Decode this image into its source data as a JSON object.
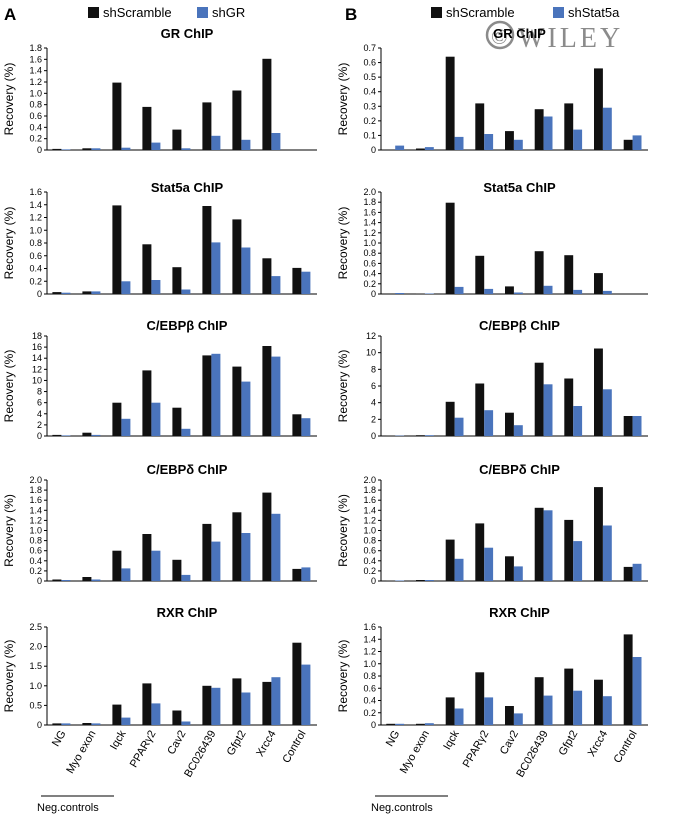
{
  "colors": {
    "scramble": "#111111",
    "knockdown": "#4a74bc",
    "axis": "#000000",
    "watermark": "#777777"
  },
  "watermark": {
    "symbol": "©",
    "text": "WILEY"
  },
  "panels": [
    {
      "letter": "A",
      "legend": [
        "shScramble",
        "shGR"
      ]
    },
    {
      "letter": "B",
      "legend": [
        "shScramble",
        "shStat5a"
      ]
    }
  ],
  "categories": [
    "NG",
    "Myo exon",
    "Iqck",
    "PPARγ2",
    "Cav2",
    "BC026439",
    "Gfpt2",
    "Xrcc4",
    "Control"
  ],
  "neg_controls_label": "Neg.controls",
  "chart_data": [
    {
      "type": "bar",
      "panel": "A",
      "title": "GR ChIP",
      "ylabel": "Recovery (%)",
      "ylim": [
        0,
        1.8
      ],
      "yticks": [
        "0",
        "0.2",
        "0.4",
        "0.6",
        "0.8",
        "1.0",
        "1.2",
        "1.4",
        "1.6",
        "1.8"
      ],
      "series": [
        {
          "name": "shScramble",
          "values": [
            0.02,
            0.03,
            1.19,
            0.76,
            0.36,
            0.84,
            1.05,
            1.61,
            0.0
          ]
        },
        {
          "name": "shGR",
          "values": [
            0.01,
            0.03,
            0.04,
            0.13,
            0.03,
            0.25,
            0.18,
            0.3,
            0.0
          ]
        }
      ]
    },
    {
      "type": "bar",
      "panel": "B",
      "title": "GR ChIP",
      "ylabel": "Recovery (%)",
      "ylim": [
        0,
        0.7
      ],
      "yticks": [
        "0",
        "0.1",
        "0.2",
        "0.3",
        "0.4",
        "0.5",
        "0.6",
        "0.7"
      ],
      "series": [
        {
          "name": "shScramble",
          "values": [
            0.0,
            0.01,
            0.64,
            0.32,
            0.13,
            0.28,
            0.32,
            0.56,
            0.07
          ]
        },
        {
          "name": "shStat5a",
          "values": [
            0.03,
            0.02,
            0.09,
            0.11,
            0.07,
            0.23,
            0.14,
            0.29,
            0.1
          ]
        }
      ]
    },
    {
      "type": "bar",
      "panel": "A",
      "title": "Stat5a ChIP",
      "ylabel": "Recovery (%)",
      "ylim": [
        0,
        1.6
      ],
      "yticks": [
        "0",
        "0.2",
        "0.4",
        "0.6",
        "0.8",
        "1.0",
        "1.2",
        "1.4",
        "1.6"
      ],
      "series": [
        {
          "name": "shScramble",
          "values": [
            0.03,
            0.04,
            1.39,
            0.78,
            0.42,
            1.38,
            1.17,
            0.56,
            0.41
          ]
        },
        {
          "name": "shGR",
          "values": [
            0.02,
            0.04,
            0.2,
            0.22,
            0.07,
            0.81,
            0.73,
            0.28,
            0.35
          ]
        }
      ]
    },
    {
      "type": "bar",
      "panel": "B",
      "title": "Stat5a ChIP",
      "ylabel": "Recovery (%)",
      "ylim": [
        0,
        2.0
      ],
      "yticks": [
        "0",
        "0.2",
        "0.4",
        "0.6",
        "0.8",
        "1.0",
        "1.2",
        "1.4",
        "1.6",
        "1.8",
        "2.0"
      ],
      "series": [
        {
          "name": "shScramble",
          "values": [
            0.0,
            0.01,
            1.79,
            0.75,
            0.15,
            0.84,
            0.76,
            0.41,
            0.0
          ]
        },
        {
          "name": "shStat5a",
          "values": [
            0.02,
            0.01,
            0.14,
            0.1,
            0.03,
            0.16,
            0.08,
            0.06,
            0.0
          ]
        }
      ]
    },
    {
      "type": "bar",
      "panel": "A",
      "title": "C/EBPβ ChIP",
      "ylabel": "Recovery (%)",
      "ylim": [
        0,
        18
      ],
      "yticks": [
        "0",
        "2",
        "4",
        "6",
        "8",
        "10",
        "12",
        "14",
        "16",
        "18"
      ],
      "series": [
        {
          "name": "shScramble",
          "values": [
            0.2,
            0.6,
            6.0,
            11.8,
            5.1,
            14.5,
            12.5,
            16.2,
            3.9
          ]
        },
        {
          "name": "shGR",
          "values": [
            0.1,
            0.2,
            3.1,
            6.0,
            1.3,
            14.8,
            9.8,
            14.3,
            3.2
          ]
        }
      ]
    },
    {
      "type": "bar",
      "panel": "B",
      "title": "C/EBPβ ChIP",
      "ylabel": "Recovery (%)",
      "ylim": [
        0,
        12
      ],
      "yticks": [
        "0",
        "2",
        "4",
        "6",
        "8",
        "10",
        "12"
      ],
      "series": [
        {
          "name": "shScramble",
          "values": [
            0.05,
            0.1,
            4.1,
            6.3,
            2.8,
            8.8,
            6.9,
            10.5,
            2.4
          ]
        },
        {
          "name": "shStat5a",
          "values": [
            0.05,
            0.1,
            2.2,
            3.1,
            1.3,
            6.2,
            3.6,
            5.6,
            2.4
          ]
        }
      ]
    },
    {
      "type": "bar",
      "panel": "A",
      "title": "C/EBPδ ChIP",
      "ylabel": "Recovery (%)",
      "ylim": [
        0,
        2.0
      ],
      "yticks": [
        "0",
        "0.2",
        "0.4",
        "0.6",
        "0.8",
        "1.0",
        "1.2",
        "1.4",
        "1.6",
        "1.8",
        "2.0"
      ],
      "series": [
        {
          "name": "shScramble",
          "values": [
            0.03,
            0.08,
            0.6,
            0.93,
            0.42,
            1.13,
            1.36,
            1.75,
            0.24
          ]
        },
        {
          "name": "shGR",
          "values": [
            0.02,
            0.03,
            0.25,
            0.6,
            0.12,
            0.78,
            0.95,
            1.33,
            0.27
          ]
        }
      ]
    },
    {
      "type": "bar",
      "panel": "B",
      "title": "C/EBPδ ChIP",
      "ylabel": "Recovery (%)",
      "ylim": [
        0,
        2.0
      ],
      "yticks": [
        "0",
        "0.2",
        "0.4",
        "0.6",
        "0.8",
        "1.0",
        "1.2",
        "1.4",
        "1.6",
        "1.8",
        "2.0"
      ],
      "series": [
        {
          "name": "shScramble",
          "values": [
            0.01,
            0.02,
            0.82,
            1.14,
            0.49,
            1.45,
            1.21,
            1.86,
            0.28
          ]
        },
        {
          "name": "shStat5a",
          "values": [
            0.01,
            0.02,
            0.44,
            0.66,
            0.29,
            1.4,
            0.79,
            1.1,
            0.34
          ]
        }
      ]
    },
    {
      "type": "bar",
      "panel": "A",
      "title": "RXR ChIP",
      "ylabel": "Recovery (%)",
      "ylim": [
        0,
        2.5
      ],
      "yticks": [
        "0",
        "0.5",
        "1.0",
        "1.5",
        "2.0",
        "2.5"
      ],
      "series": [
        {
          "name": "shScramble",
          "values": [
            0.04,
            0.05,
            0.52,
            1.06,
            0.37,
            1.0,
            1.19,
            1.1,
            2.1
          ]
        },
        {
          "name": "shGR",
          "values": [
            0.04,
            0.04,
            0.19,
            0.55,
            0.09,
            0.95,
            0.83,
            1.22,
            1.54
          ]
        }
      ]
    },
    {
      "type": "bar",
      "panel": "B",
      "title": "RXR ChIP",
      "ylabel": "Recovery (%)",
      "ylim": [
        0,
        1.6
      ],
      "yticks": [
        "0",
        "0.2",
        "0.4",
        "0.6",
        "0.8",
        "1.0",
        "1.2",
        "1.4",
        "1.6"
      ],
      "series": [
        {
          "name": "shScramble",
          "values": [
            0.02,
            0.02,
            0.45,
            0.86,
            0.31,
            0.78,
            0.92,
            0.74,
            1.48
          ]
        },
        {
          "name": "shStat5a",
          "values": [
            0.02,
            0.03,
            0.27,
            0.45,
            0.19,
            0.48,
            0.56,
            0.47,
            1.11
          ]
        }
      ]
    }
  ]
}
